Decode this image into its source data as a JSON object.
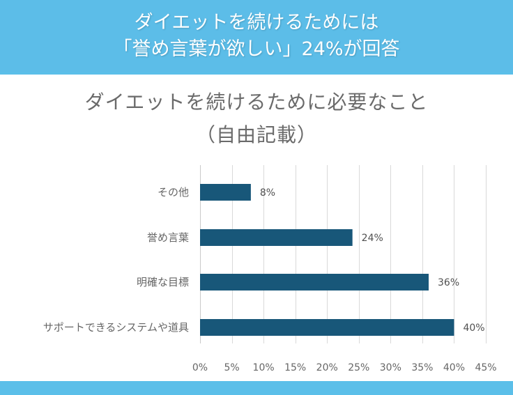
{
  "banner": {
    "line1": "ダイエットを続けるためには",
    "line2": "「誉め言葉が欲しい」24%が回答"
  },
  "colors": {
    "banner": "#5cbde8",
    "bar": "#185779",
    "grid": "#d9d9d9",
    "text": "#666666"
  },
  "chart_data": {
    "type": "bar",
    "orientation": "horizontal",
    "title": "ダイエットを続けるために必要なこと",
    "subtitle": "（自由記載）",
    "categories": [
      "その他",
      "誉め言葉",
      "明確な目標",
      "サポートできるシステムや道具"
    ],
    "values": [
      8,
      24,
      36,
      40
    ],
    "data_labels": [
      "8%",
      "24%",
      "36%",
      "40%"
    ],
    "xlim": [
      0,
      45
    ],
    "xticks": [
      0,
      5,
      10,
      15,
      20,
      25,
      30,
      35,
      40,
      45
    ],
    "xtick_labels": [
      "0%",
      "5%",
      "10%",
      "15%",
      "20%",
      "25%",
      "30%",
      "35%",
      "40%",
      "45%"
    ],
    "unit": "%",
    "grid": "vertical",
    "legend": "none"
  }
}
